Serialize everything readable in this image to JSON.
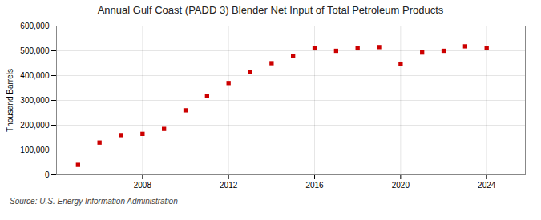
{
  "chart_data": {
    "type": "scatter",
    "title": "Annual Gulf Coast (PADD 3) Blender Net Input of Total Petroleum Products",
    "ylabel": "Thousand Barrels",
    "source": "Source: U.S. Energy Information Administration",
    "x": [
      2005,
      2006,
      2007,
      2008,
      2009,
      2010,
      2011,
      2012,
      2013,
      2014,
      2015,
      2016,
      2017,
      2018,
      2019,
      2020,
      2021,
      2022,
      2023,
      2024
    ],
    "values": [
      40000,
      130000,
      160000,
      165000,
      185000,
      260000,
      318000,
      370000,
      415000,
      450000,
      478000,
      510000,
      500000,
      510000,
      515000,
      448000,
      493000,
      500000,
      518000,
      512000
    ],
    "color": "#cc0000",
    "marker": "square",
    "xlim": [
      2004.0,
      2025.8
    ],
    "xticks": [
      2008,
      2012,
      2016,
      2020,
      2024
    ],
    "ylim": [
      0,
      600000
    ],
    "yticks": [
      0,
      {
        "value": 100000,
        "label": "100,000"
      },
      {
        "value": 200000,
        "label": "200,000"
      },
      {
        "value": 300000,
        "label": "300,000"
      },
      {
        "value": 400000,
        "label": "400,000"
      },
      {
        "value": 500000,
        "label": "500,000"
      },
      {
        "value": 600000,
        "label": "600,000"
      }
    ],
    "grid": true
  }
}
